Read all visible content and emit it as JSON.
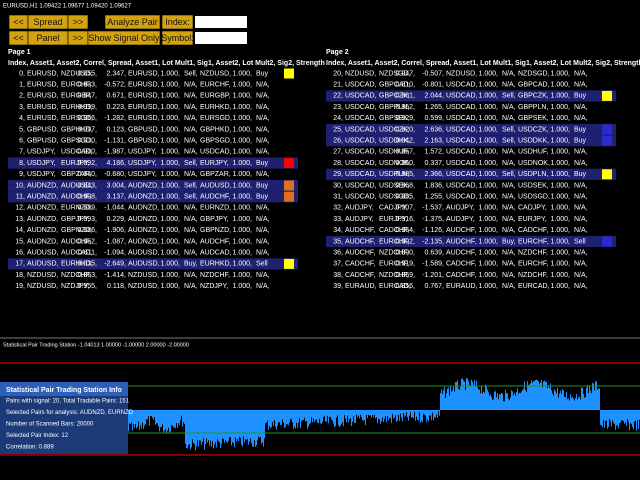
{
  "title_bar": "EURUSD,H1  1.09422 1.09677 1.09420 1.09627",
  "buttons": {
    "row1": [
      "<<",
      "Spread",
      ">>",
      "Analyze Pair",
      "Index:"
    ],
    "row2": [
      "<<",
      "Panel",
      ">>",
      "Show Signal Only",
      "Symbol:"
    ]
  },
  "pages": [
    {
      "title": "Page 1",
      "header": "Index, Asset1, Asset2, Correl, Spread, Asset1, Lot Mult1, Sig1, Asset2, Lot Mult2, Sig2, Strength",
      "rows": [
        {
          "cells": [
            "0,",
            "EURUSD,",
            "NZDUSD,",
            "0.855,",
            "2.347,",
            "EURUSD,",
            "1.000,",
            "Sell,",
            "NZDUSD,",
            "1.000,",
            "Buy"
          ],
          "strength": "#ffff00"
        },
        {
          "cells": [
            "1,",
            "EURUSD,",
            "EURCHF,",
            "0.833,",
            "-0.572,",
            "EURUSD,",
            "1.000,",
            "N/A,",
            "EURCHF,",
            "1.000,",
            "N/A,"
          ]
        },
        {
          "cells": [
            "2,",
            "EURUSD,",
            "EURGBP,",
            "0.847,",
            "0.671,",
            "EURUSD,",
            "1.000,",
            "N/A,",
            "EURGBP,",
            "1.000,",
            "N/A,"
          ]
        },
        {
          "cells": [
            "3,",
            "EURUSD,",
            "EURHKD,",
            "0.999,",
            "0.223,",
            "EURUSD,",
            "1.000,",
            "N/A,",
            "EURHKD,",
            "1.000,",
            "N/A,"
          ]
        },
        {
          "cells": [
            "4,",
            "EURUSD,",
            "EURSGD,",
            "0.966,",
            "-1.282,",
            "EURUSD,",
            "1.000,",
            "N/A,",
            "EURSGD,",
            "1.000,",
            "N/A,"
          ]
        },
        {
          "cells": [
            "5,",
            "GBPUSD,",
            "GBPHKD,",
            "0.997,",
            "0.123,",
            "GBPUSD,",
            "1.000,",
            "N/A,",
            "GBPHKD,",
            "1.000,",
            "N/A,"
          ]
        },
        {
          "cells": [
            "6,",
            "GBPUSD,",
            "GBPSGD,",
            "0.930,",
            "-1.131,",
            "GBPUSD,",
            "1.000,",
            "N/A,",
            "GBPSGD,",
            "1.000,",
            "N/A,"
          ]
        },
        {
          "cells": [
            "7,",
            "USDJPY,",
            "USDCAD,",
            "0.900,",
            "-1.987,",
            "USDJPY,",
            "1.000,",
            "N/A,",
            "USDCAD,",
            "1.000,",
            "N/A,"
          ]
        },
        {
          "cells": [
            "8,",
            "USDJPY,",
            "EURJPY,",
            "0.892,",
            "4.186,",
            "USDJPY,",
            "1.000,",
            "Sell,",
            "EURJPY,",
            "1.000,",
            "Buy"
          ],
          "highlight": true,
          "strength": "#ff0000"
        },
        {
          "cells": [
            "9,",
            "USDJPY,",
            "GBPZAR,",
            "0.840,",
            "-0.680,",
            "USDJPY,",
            "1.000,",
            "N/A,",
            "GBPZAR,",
            "1.000,",
            "N/A,"
          ]
        },
        {
          "cells": [
            "10,",
            "AUDNZD,",
            "AUDUSD,",
            "0.843,",
            "3.004,",
            "AUDNZD,",
            "1.000,",
            "Sell,",
            "AUDUSD,",
            "1.000,",
            "Buy"
          ],
          "highlight": true,
          "strength": "#e07020"
        },
        {
          "cells": [
            "11,",
            "AUDNZD,",
            "AUDCHF,",
            "0.908,",
            "3.137,",
            "AUDNZD,",
            "1.000,",
            "Sell,",
            "AUDCHF,",
            "1.000,",
            "Buy"
          ],
          "highlight": true,
          "strength": "#e07020"
        },
        {
          "cells": [
            "12,",
            "AUDNZD,",
            "EURNZD,",
            "0.889,",
            "-1.044,",
            "AUDNZD,",
            "1.000,",
            "N/A,",
            "EURNZD,",
            "1.000,",
            "N/A,"
          ]
        },
        {
          "cells": [
            "13,",
            "AUDNZD,",
            "GBPJPY,",
            "0.893,",
            "0.229,",
            "AUDNZD,",
            "1.000,",
            "N/A,",
            "GBPJPY,",
            "1.000,",
            "N/A,"
          ]
        },
        {
          "cells": [
            "14,",
            "AUDNZD,",
            "GBPNZD,",
            "0.886,",
            "-1.906,",
            "AUDNZD,",
            "1.000,",
            "N/A,",
            "GBPNZD,",
            "1.000,",
            "N/A,"
          ]
        },
        {
          "cells": [
            "15,",
            "AUDNZD,",
            "AUDCHF,",
            "0.952,",
            "-1.087,",
            "AUDNZD,",
            "1.000,",
            "N/A,",
            "AUDCHF,",
            "1.000,",
            "N/A,"
          ]
        },
        {
          "cells": [
            "16,",
            "AUDUSD,",
            "AUDCAD,",
            "0.811,",
            "-1.094,",
            "AUDUSD,",
            "1.000,",
            "N/A,",
            "AUDCAD,",
            "1.000,",
            "N/A,"
          ]
        },
        {
          "cells": [
            "17,",
            "AUDUSD,",
            "EURHKD,",
            "0.835,",
            "-2.649,",
            "AUDUSD,",
            "1.000,",
            "Buy,",
            "EURHKD,",
            "1.000,",
            "Sell"
          ],
          "highlight": true,
          "strength": "#ffff00"
        },
        {
          "cells": [
            "18,",
            "NZDUSD,",
            "NZDCHF,",
            "0.863,",
            "-1.414,",
            "NZDUSD,",
            "1.000,",
            "N/A,",
            "NZDCHF,",
            "1.000,",
            "N/A,"
          ]
        },
        {
          "cells": [
            "19,",
            "NZDUSD,",
            "NZDJPY,",
            "0.955,",
            "0.118,",
            "NZDUSD,",
            "1.000,",
            "N/A,",
            "NZDJPY,",
            "1.000,",
            "N/A,"
          ]
        }
      ]
    },
    {
      "title": "Page 2",
      "header": "Index, Asset1, Asset2, Correl, Spread, Asset1, Lot Mult1, Sig1, Asset2, Lot Mult2, Sig2, Strength",
      "rows": [
        {
          "cells": [
            "20,",
            "NZDUSD,",
            "NZDSGD,",
            "0.947,",
            "-0.507,",
            "NZDUSD,",
            "1.000,",
            "N/A,",
            "NZDSGD,",
            "1.000,",
            "N/A,"
          ]
        },
        {
          "cells": [
            "21,",
            "USDCAD,",
            "GBPCAD,",
            "0.810,",
            "-0.801,",
            "USDCAD,",
            "1.000,",
            "N/A,",
            "GBPCAD,",
            "1.000,",
            "N/A,"
          ]
        },
        {
          "cells": [
            "22,",
            "USDCAD,",
            "GBPCZK,",
            "0.881,",
            "2.044,",
            "USDCAD,",
            "1.000,",
            "Sell,",
            "GBPCZK,",
            "1.000,",
            "Buy"
          ],
          "highlight": true,
          "strength": "#ffff00"
        },
        {
          "cells": [
            "23,",
            "USDCAD,",
            "GBPPLN,",
            "0.852,",
            "1.265,",
            "USDCAD,",
            "1.000,",
            "N/A,",
            "GBPPLN,",
            "1.000,",
            "N/A,"
          ]
        },
        {
          "cells": [
            "24,",
            "USDCAD,",
            "GBPSEK,",
            "0.829,",
            "0.599,",
            "USDCAD,",
            "1.000,",
            "N/A,",
            "GBPSEK,",
            "1.000,",
            "N/A,"
          ]
        },
        {
          "cells": [
            "25,",
            "USDCAD,",
            "USDCZK,",
            "0.820,",
            "2.636,",
            "USDCAD,",
            "1.000,",
            "Sell,",
            "USDCZK,",
            "1.000,",
            "Buy"
          ],
          "highlight": true,
          "strength": "#2a2ad0"
        },
        {
          "cells": [
            "26,",
            "USDCAD,",
            "USDDKK,",
            "0.842,",
            "2.163,",
            "USDCAD,",
            "1.000,",
            "Sell,",
            "USDDKK,",
            "1.000,",
            "Buy"
          ],
          "highlight": true,
          "strength": "#2a2ad0"
        },
        {
          "cells": [
            "27,",
            "USDCAD,",
            "USDHUF,",
            "0.857,",
            "1.572,",
            "USDCAD,",
            "1.000,",
            "N/A,",
            "USDHUF,",
            "1.000,",
            "N/A,"
          ]
        },
        {
          "cells": [
            "28,",
            "USDCAD,",
            "USDNOK,",
            "0.850,",
            "0.337,",
            "USDCAD,",
            "1.000,",
            "N/A,",
            "USDNOK,",
            "1.000,",
            "N/A,"
          ]
        },
        {
          "cells": [
            "29,",
            "USDCAD,",
            "USDPLN,",
            "0.885,",
            "2.366,",
            "USDCAD,",
            "1.000,",
            "Sell,",
            "USDPLN,",
            "1.000,",
            "Buy"
          ],
          "highlight": true,
          "strength": "#ffff00"
        },
        {
          "cells": [
            "30,",
            "USDCAD,",
            "USDSEK,",
            "0.868,",
            "1.836,",
            "USDCAD,",
            "1.000,",
            "N/A,",
            "USDSEK,",
            "1.000,",
            "N/A,"
          ]
        },
        {
          "cells": [
            "31,",
            "USDCAD,",
            "USDSGD,",
            "0.885,",
            "1.255,",
            "USDCAD,",
            "1.000,",
            "N/A,",
            "USDSGD,",
            "1.000,",
            "N/A,"
          ]
        },
        {
          "cells": [
            "32,",
            "AUDJPY,",
            "CADJPY,",
            "0.907,",
            "-1.537,",
            "AUDJPY,",
            "1.000,",
            "N/A,",
            "CADJPY,",
            "1.000,",
            "N/A,"
          ]
        },
        {
          "cells": [
            "33,",
            "AUDJPY,",
            "EURJPY,",
            "0.916,",
            "-1.375,",
            "AUDJPY,",
            "1.000,",
            "N/A,",
            "EURJPY,",
            "1.000,",
            "N/A,"
          ]
        },
        {
          "cells": [
            "34,",
            "AUDCHF,",
            "CADCHF,",
            "0.964,",
            "-1.126,",
            "AUDCHF,",
            "1.000,",
            "N/A,",
            "CADCHF,",
            "1.000,",
            "N/A,"
          ]
        },
        {
          "cells": [
            "35,",
            "AUDCHF,",
            "EURCHF,",
            "0.902,",
            "-2.135,",
            "AUDCHF,",
            "1.000,",
            "Buy,",
            "EURCHF,",
            "1.000,",
            "Sell"
          ],
          "highlight": true,
          "strength": "#2a2ad0"
        },
        {
          "cells": [
            "36,",
            "AUDCHF,",
            "NZDCHF,",
            "0.890,",
            "0.639,",
            "AUDCHF,",
            "1.000,",
            "N/A,",
            "NZDCHF,",
            "1.000,",
            "N/A,"
          ]
        },
        {
          "cells": [
            "37,",
            "CADCHF,",
            "EURCHF,",
            "0.919,",
            "-1.589,",
            "CADCHF,",
            "1.000,",
            "N/A,",
            "EURCHF,",
            "1.000,",
            "N/A,"
          ]
        },
        {
          "cells": [
            "38,",
            "CADCHF,",
            "NZDCHF,",
            "0.869,",
            "-1.201,",
            "CADCHF,",
            "1.000,",
            "N/A,",
            "NZDCHF,",
            "1.000,",
            "N/A,"
          ]
        },
        {
          "cells": [
            "39,",
            "EURAUD,",
            "EURCAD,",
            "0.856,",
            "0.767,",
            "EURAUD,",
            "1.000,",
            "N/A,",
            "EURCAD,",
            "1.000,",
            "N/A,"
          ]
        }
      ]
    }
  ],
  "indicator": {
    "label": "Statistical Pair Trading Station -1.04013 1.00000 -1.00000 2.00000 -2.00000",
    "info": {
      "title": "Statistical Pair Trading Station Info",
      "lines": [
        "Pairs with signal: 20, Total Tradable Pairs: 151",
        "Selected Pairs for analysis: AUDNZD, EURNZD",
        "Number of Scanned Bars: 20000",
        "Selected Pair Index: 12",
        "Correlation: 0.889"
      ]
    }
  }
}
